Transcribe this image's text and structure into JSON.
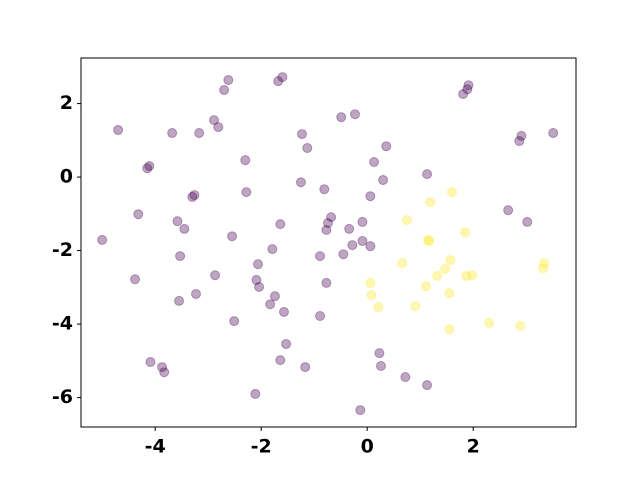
{
  "chart_data": {
    "type": "scatter",
    "xlim": [
      -5.4,
      3.94
    ],
    "ylim": [
      -6.8,
      3.24
    ],
    "xticks": [
      -4,
      -2,
      0,
      2
    ],
    "yticks": [
      -6,
      -4,
      -2,
      0,
      2
    ],
    "series": [
      {
        "color": "#440154",
        "x": [
          -5.0,
          -4.7,
          -4.38,
          -4.32,
          -4.15,
          -4.11,
          -4.09,
          -3.87,
          -3.83,
          -3.68,
          -3.58,
          -3.55,
          -3.53,
          -3.45,
          -3.3,
          -3.26,
          -3.23,
          -3.17,
          -2.89,
          -2.87,
          -2.81,
          -2.7,
          -2.62,
          -2.55,
          -2.51,
          -2.3,
          -2.28,
          -2.11,
          -2.09,
          -2.06,
          -2.04,
          -1.83,
          -1.79,
          -1.74,
          -1.68,
          -1.64,
          -1.64,
          -1.6,
          -1.57,
          -1.53,
          -1.23,
          -1.25,
          -1.17,
          -1.13,
          -0.89,
          -0.89,
          -0.81,
          -0.77,
          -0.77,
          -0.74,
          -0.68,
          -0.49,
          -0.45,
          -0.34,
          -0.28,
          -0.23,
          -0.13,
          -0.09,
          -0.09,
          0.06,
          0.06,
          0.13,
          0.23,
          0.26,
          0.3,
          0.36,
          0.72,
          1.13,
          1.13,
          1.81,
          1.89,
          1.91,
          2.66,
          2.87,
          2.91,
          3.02,
          3.51
        ],
        "values": [
          -1.71,
          1.28,
          -2.78,
          -1.01,
          0.24,
          0.3,
          -5.03,
          -5.17,
          -5.31,
          1.2,
          -1.2,
          -3.37,
          -2.15,
          -1.41,
          -0.54,
          -0.49,
          -3.18,
          1.2,
          1.55,
          -2.67,
          1.36,
          2.37,
          2.64,
          -1.61,
          -3.92,
          0.46,
          -0.41,
          -5.9,
          -2.8,
          -2.37,
          -2.99,
          -3.46,
          -1.96,
          -3.24,
          2.61,
          -1.28,
          -4.98,
          2.72,
          -3.67,
          -4.54,
          1.17,
          -0.14,
          -5.17,
          0.79,
          -2.15,
          -3.78,
          -0.33,
          -2.88,
          -1.44,
          -1.25,
          -1.09,
          1.63,
          -2.1,
          -1.41,
          -1.85,
          1.71,
          -6.34,
          -1.74,
          -1.22,
          -0.52,
          -1.88,
          0.41,
          -4.79,
          -5.14,
          -0.08,
          0.84,
          -5.44,
          0.08,
          -5.66,
          2.26,
          2.39,
          2.5,
          -0.9,
          0.98,
          1.12,
          -1.22,
          1.2
        ]
      },
      {
        "color": "#fde725",
        "x": [
          0.06,
          0.08,
          0.21,
          0.66,
          0.75,
          0.91,
          1.11,
          1.15,
          1.17,
          1.19,
          1.32,
          1.47,
          1.55,
          1.55,
          1.57,
          1.6,
          1.85,
          1.87,
          1.98,
          2.3,
          2.89,
          3.34,
          3.32
        ],
        "values": [
          -2.88,
          -3.21,
          -3.54,
          -2.34,
          -1.17,
          -3.51,
          -2.97,
          -1.71,
          -1.74,
          -0.68,
          -2.69,
          -2.5,
          -3.16,
          -4.14,
          -2.26,
          -0.41,
          -1.5,
          -2.69,
          -2.67,
          -3.97,
          -4.05,
          -2.34,
          -2.48
        ]
      }
    ]
  }
}
